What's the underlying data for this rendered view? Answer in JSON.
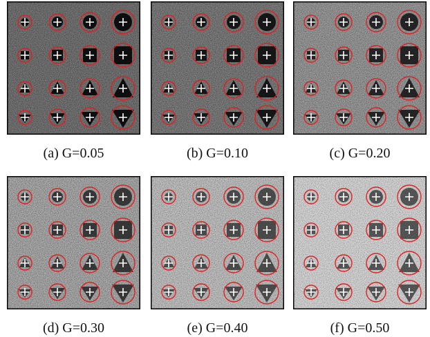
{
  "panels": [
    {
      "caption": "(a) G=0.05"
    },
    {
      "caption": "(b) G=0.10"
    },
    {
      "caption": "(c) G=0.20"
    },
    {
      "caption": "(d) G=0.30"
    },
    {
      "caption": "(e) G=0.40"
    },
    {
      "caption": "(f) G=0.50"
    }
  ]
}
